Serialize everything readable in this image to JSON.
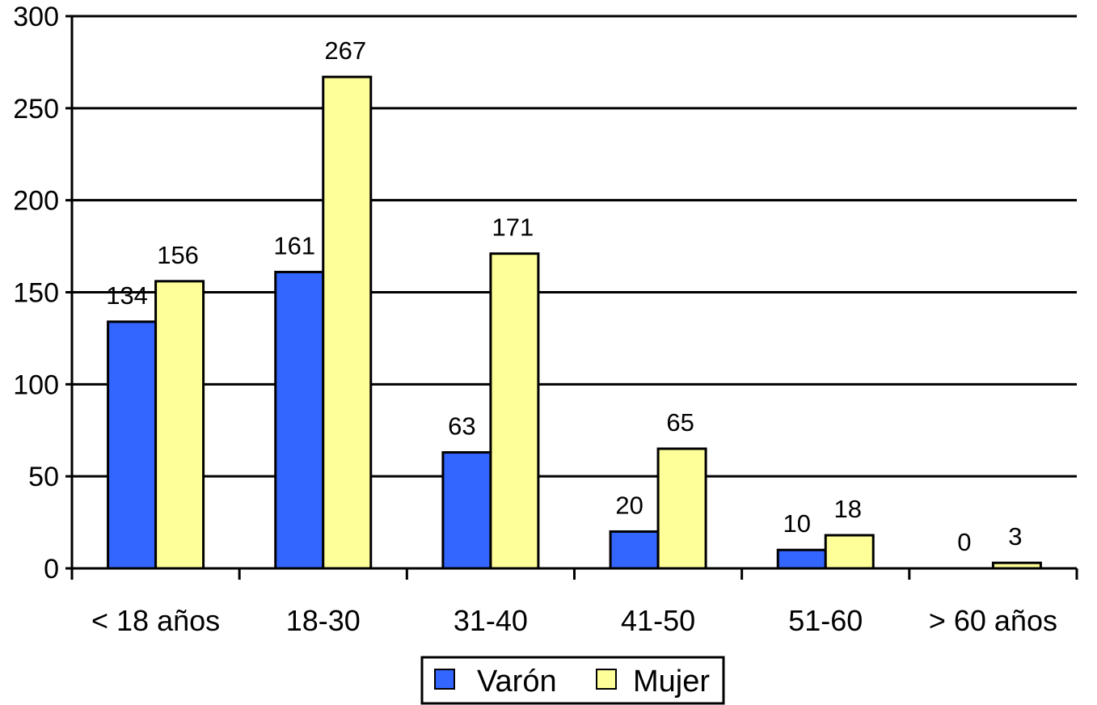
{
  "chart_data": {
    "type": "bar",
    "title": "",
    "xlabel": "",
    "ylabel": "",
    "ylim": [
      0,
      300
    ],
    "yticks": [
      0,
      50,
      100,
      150,
      200,
      250,
      300
    ],
    "grid": true,
    "legend_position": "bottom",
    "categories": [
      "< 18 años",
      "18-30",
      "31-40",
      "41-50",
      "51-60",
      "> 60 años"
    ],
    "series": [
      {
        "name": "Varón",
        "values": [
          134,
          161,
          63,
          20,
          10,
          0
        ],
        "color": "#3366ff"
      },
      {
        "name": "Mujer",
        "values": [
          156,
          267,
          171,
          65,
          18,
          3
        ],
        "color": "#ffff99"
      }
    ]
  }
}
